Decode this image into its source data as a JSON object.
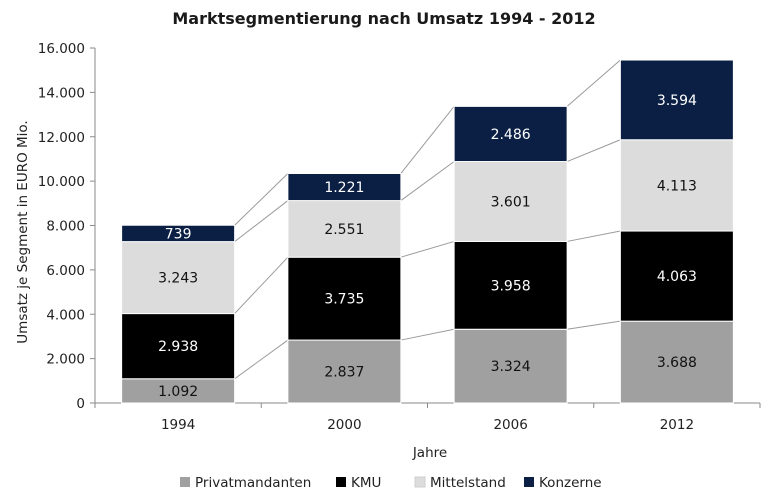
{
  "chart_data": {
    "type": "bar",
    "stacked": true,
    "title": "Marktsegmentierung nach Umsatz 1994 - 2012",
    "xlabel": "Jahre",
    "ylabel": "Umsatz je Segment in EURO Mio.",
    "ylim": [
      0,
      16000
    ],
    "yticks": [
      "0",
      "2.000",
      "4.000",
      "6.000",
      "8.000",
      "10.000",
      "12.000",
      "14.000",
      "16.000"
    ],
    "categories": [
      "1994",
      "2000",
      "2006",
      "2012"
    ],
    "series": [
      {
        "name": "Privatmandanten",
        "color": "#a0a0a0",
        "label_color": "#111111",
        "values": [
          1092,
          2837,
          3324,
          3688
        ],
        "labels": [
          "1.092",
          "2.837",
          "3.324",
          "3.688"
        ]
      },
      {
        "name": "KMU",
        "color": "#000000",
        "label_color": "#ffffff",
        "values": [
          2938,
          3735,
          3958,
          4063
        ],
        "labels": [
          "2.938",
          "3.735",
          "3.958",
          "4.063"
        ]
      },
      {
        "name": "Mittelstand",
        "color": "#dcdcdc",
        "label_color": "#111111",
        "values": [
          3243,
          2551,
          3601,
          4113
        ],
        "labels": [
          "3.243",
          "2.551",
          "3.601",
          "4.113"
        ]
      },
      {
        "name": "Konzerne",
        "color": "#0b1f45",
        "label_color": "#ffffff",
        "values": [
          739,
          1221,
          2486,
          3594
        ],
        "labels": [
          "739",
          "1.221",
          "2.486",
          "3.594"
        ]
      }
    ],
    "series_lines": true,
    "grid": false,
    "legend_position": "bottom"
  }
}
